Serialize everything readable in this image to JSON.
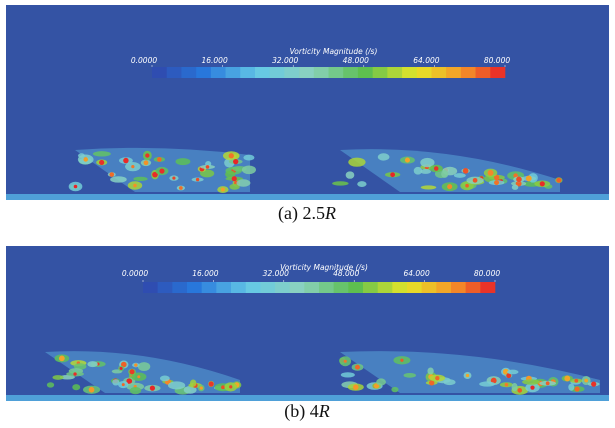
{
  "panels": [
    {
      "colorbar": {
        "title": "Vorticity Magnitude (/s)",
        "ticks": [
          {
            "value": 0,
            "label": "0.0000"
          },
          {
            "value": 16,
            "label": "16.000"
          },
          {
            "value": 32,
            "label": "32.000"
          },
          {
            "value": 48,
            "label": "48.000"
          },
          {
            "value": 64,
            "label": "64.000"
          },
          {
            "value": 80,
            "label": "80.000"
          }
        ]
      },
      "caption": {
        "text": "(a) 2.5",
        "italic": "R"
      }
    },
    {
      "colorbar": {
        "title": "Vorticity Magnitude (/s)",
        "ticks": [
          {
            "value": 0,
            "label": "0.0000"
          },
          {
            "value": 16,
            "label": "16.000"
          },
          {
            "value": 32,
            "label": "32.000"
          },
          {
            "value": 48,
            "label": "48.000"
          },
          {
            "value": 64,
            "label": "64.000"
          },
          {
            "value": 80,
            "label": "80.000"
          }
        ]
      },
      "caption": {
        "text": "(b) 4",
        "italic": "R"
      }
    }
  ]
}
